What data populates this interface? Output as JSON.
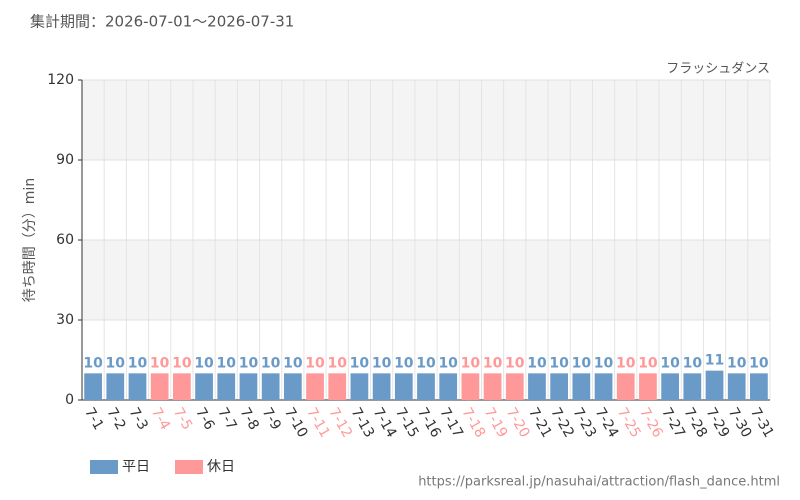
{
  "chart_data": {
    "type": "bar",
    "subtitle": "集計期間：2026-07-01～2026-07-31",
    "title": "フラッシュダンス",
    "y_label": "待ち時間（分）min",
    "source": "https://parksreal.jp/nasuhai/attraction/flash_dance.html",
    "categories": [
      "7-1",
      "7-2",
      "7-3",
      "7-4",
      "7-5",
      "7-6",
      "7-7",
      "7-8",
      "7-9",
      "7-10",
      "7-11",
      "7-12",
      "7-13",
      "7-14",
      "7-15",
      "7-16",
      "7-17",
      "7-18",
      "7-19",
      "7-20",
      "7-21",
      "7-22",
      "7-23",
      "7-24",
      "7-25",
      "7-26",
      "7-27",
      "7-28",
      "7-29",
      "7-30",
      "7-31"
    ],
    "series": [
      {
        "name": "平日",
        "color": "#6a9ac7",
        "values": [
          10,
          10,
          10,
          null,
          null,
          10,
          10,
          10,
          10,
          10,
          null,
          null,
          10,
          10,
          10,
          10,
          10,
          null,
          null,
          null,
          10,
          10,
          10,
          10,
          null,
          null,
          10,
          10,
          11,
          10,
          10
        ]
      },
      {
        "name": "休日",
        "color": "#ff9999",
        "values": [
          null,
          null,
          null,
          10,
          10,
          null,
          null,
          null,
          null,
          null,
          10,
          10,
          null,
          null,
          null,
          null,
          null,
          10,
          10,
          10,
          null,
          null,
          null,
          null,
          10,
          10,
          null,
          null,
          null,
          null,
          null
        ]
      }
    ],
    "ylim": [
      0,
      120
    ],
    "yticks": [
      0,
      30,
      60,
      90,
      120
    ],
    "grid": true
  }
}
